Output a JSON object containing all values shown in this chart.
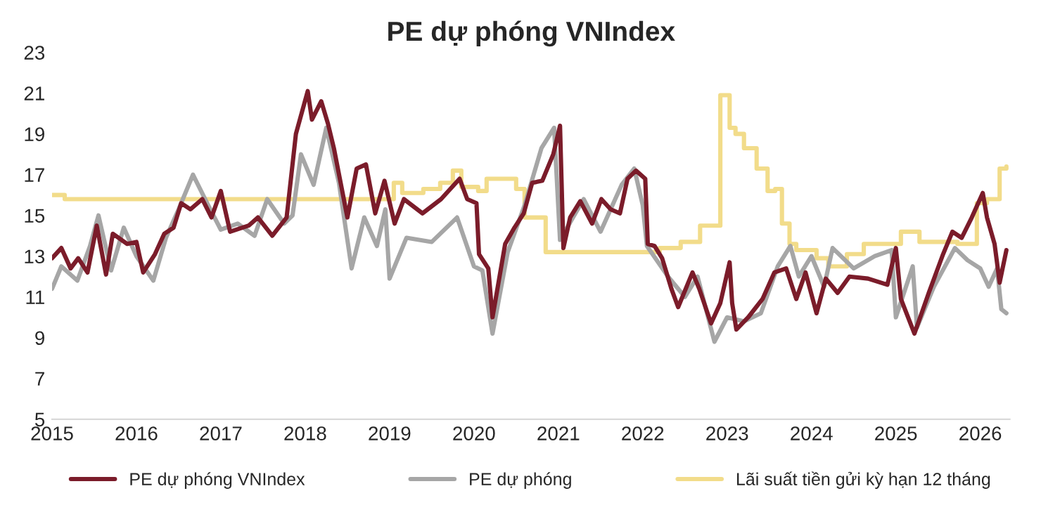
{
  "chart_data": {
    "type": "line",
    "title": "PE dự phóng VNIndex",
    "xlim": [
      2015,
      2026.35
    ],
    "xticks": [
      2015,
      2016,
      2017,
      2018,
      2019,
      2020,
      2021,
      2022,
      2023,
      2024,
      2025,
      2026
    ],
    "ylim": [
      5,
      23
    ],
    "yticks": [
      5,
      7,
      9,
      11,
      13,
      15,
      17,
      19,
      21,
      23
    ],
    "grid": false,
    "legend": "bottom",
    "series": [
      {
        "name": "PE dự phóng VNIndex",
        "color": "#7b1c2a",
        "x": [
          2015.0,
          2015.11,
          2015.22,
          2015.31,
          2015.42,
          2015.53,
          2015.64,
          2015.72,
          2015.89,
          2016.0,
          2016.08,
          2016.22,
          2016.33,
          2016.44,
          2016.53,
          2016.64,
          2016.78,
          2016.89,
          2017.0,
          2017.11,
          2017.33,
          2017.44,
          2017.61,
          2017.78,
          2017.89,
          2018.03,
          2018.08,
          2018.19,
          2018.27,
          2018.34,
          2018.5,
          2018.61,
          2018.72,
          2018.83,
          2018.94,
          2019.06,
          2019.17,
          2019.39,
          2019.61,
          2019.83,
          2019.92,
          2020.03,
          2020.06,
          2020.17,
          2020.22,
          2020.37,
          2020.48,
          2020.59,
          2020.69,
          2020.81,
          2020.94,
          2021.02,
          2021.06,
          2021.14,
          2021.26,
          2021.4,
          2021.51,
          2021.62,
          2021.73,
          2021.82,
          2021.92,
          2022.03,
          2022.06,
          2022.14,
          2022.23,
          2022.34,
          2022.42,
          2022.59,
          2022.67,
          2022.81,
          2022.92,
          2023.03,
          2023.06,
          2023.11,
          2023.25,
          2023.42,
          2023.56,
          2023.7,
          2023.82,
          2023.93,
          2024.06,
          2024.17,
          2024.31,
          2024.45,
          2024.67,
          2024.9,
          2025.0,
          2025.06,
          2025.22,
          2025.39,
          2025.56,
          2025.67,
          2025.78,
          2025.9,
          2026.03,
          2026.08,
          2026.17,
          2026.23,
          2026.31
        ],
        "values": [
          12.9,
          13.4,
          12.4,
          12.9,
          12.2,
          14.5,
          12.1,
          14.1,
          13.6,
          13.7,
          12.2,
          13.1,
          14.1,
          14.4,
          15.6,
          15.3,
          15.8,
          14.9,
          16.2,
          14.2,
          14.5,
          14.9,
          14.0,
          14.9,
          19.0,
          21.1,
          19.7,
          20.6,
          19.5,
          18.3,
          14.9,
          17.3,
          17.5,
          15.1,
          16.7,
          14.6,
          15.8,
          15.1,
          15.8,
          16.8,
          15.8,
          15.6,
          13.1,
          12.4,
          10.0,
          13.6,
          14.4,
          15.1,
          16.6,
          16.7,
          18.0,
          19.4,
          13.4,
          14.9,
          15.7,
          14.6,
          15.8,
          15.3,
          15.1,
          16.8,
          17.2,
          16.8,
          13.6,
          13.5,
          12.9,
          11.4,
          10.5,
          12.2,
          11.4,
          9.7,
          10.7,
          12.7,
          10.7,
          9.4,
          10.0,
          10.9,
          12.2,
          12.4,
          10.9,
          12.2,
          10.2,
          11.9,
          11.2,
          12.0,
          11.9,
          11.6,
          13.4,
          10.9,
          9.2,
          11.2,
          13.1,
          14.2,
          13.9,
          14.9,
          16.1,
          14.9,
          13.6,
          11.7,
          13.3
        ]
      },
      {
        "name": "PE dự phóng",
        "color": "#a6a6a6",
        "x": [
          2015.0,
          2015.11,
          2015.3,
          2015.45,
          2015.55,
          2015.7,
          2015.85,
          2016.0,
          2016.2,
          2016.35,
          2016.5,
          2016.67,
          2016.85,
          2017.0,
          2017.2,
          2017.4,
          2017.55,
          2017.75,
          2017.85,
          2017.95,
          2018.1,
          2018.25,
          2018.4,
          2018.55,
          2018.7,
          2018.85,
          2018.95,
          2019.0,
          2019.2,
          2019.5,
          2019.8,
          2020.0,
          2020.1,
          2020.22,
          2020.4,
          2020.6,
          2020.8,
          2020.95,
          2021.02,
          2021.3,
          2021.5,
          2021.75,
          2021.9,
          2022.0,
          2022.05,
          2022.3,
          2022.5,
          2022.65,
          2022.85,
          2023.0,
          2023.2,
          2023.4,
          2023.6,
          2023.75,
          2023.85,
          2024.0,
          2024.15,
          2024.25,
          2024.5,
          2024.75,
          2024.95,
          2025.0,
          2025.2,
          2025.25,
          2025.45,
          2025.7,
          2025.85,
          2026.0,
          2026.1,
          2026.2,
          2026.25,
          2026.31
        ],
        "values": [
          11.4,
          12.5,
          11.8,
          13.5,
          15.0,
          12.3,
          14.4,
          13.0,
          11.8,
          13.9,
          15.3,
          17.0,
          15.5,
          14.3,
          14.6,
          14.0,
          15.8,
          14.6,
          15.0,
          18.0,
          16.5,
          19.3,
          16.6,
          12.4,
          14.9,
          13.5,
          15.3,
          11.9,
          13.9,
          13.7,
          14.9,
          12.5,
          12.3,
          9.2,
          13.2,
          15.5,
          18.3,
          19.3,
          13.8,
          15.8,
          14.2,
          16.5,
          17.3,
          15.5,
          13.5,
          12.0,
          11.0,
          12.0,
          8.8,
          10.0,
          9.8,
          10.2,
          12.5,
          13.5,
          12.0,
          13.0,
          11.5,
          13.4,
          12.4,
          13.0,
          13.3,
          10.0,
          12.5,
          9.5,
          11.5,
          13.4,
          12.8,
          12.4,
          11.5,
          12.4,
          10.4,
          10.2
        ]
      },
      {
        "name": "Lãi suất tiền gửi kỳ hạn 12 tháng",
        "color": "#f2dc8a",
        "type": "step",
        "x": [
          2015.0,
          2015.15,
          2019.05,
          2019.15,
          2019.4,
          2019.6,
          2019.75,
          2019.85,
          2020.05,
          2020.15,
          2020.5,
          2020.6,
          2020.85,
          2022.2,
          2022.45,
          2022.68,
          2022.92,
          2023.03,
          2023.1,
          2023.2,
          2023.35,
          2023.48,
          2023.57,
          2023.65,
          2023.74,
          2023.82,
          2024.06,
          2024.2,
          2024.42,
          2024.62,
          2025.06,
          2025.28,
          2025.73,
          2025.96,
          2026.08,
          2026.23,
          2026.31
        ],
        "values": [
          16.0,
          15.8,
          16.6,
          16.1,
          16.3,
          16.6,
          17.2,
          16.4,
          16.2,
          16.8,
          16.3,
          14.9,
          13.2,
          13.4,
          13.7,
          14.5,
          20.9,
          19.3,
          19.0,
          18.3,
          17.3,
          16.2,
          16.3,
          14.6,
          13.6,
          13.3,
          12.9,
          12.5,
          13.1,
          13.6,
          14.2,
          13.7,
          13.6,
          15.6,
          15.8,
          17.3,
          17.4
        ]
      }
    ]
  }
}
